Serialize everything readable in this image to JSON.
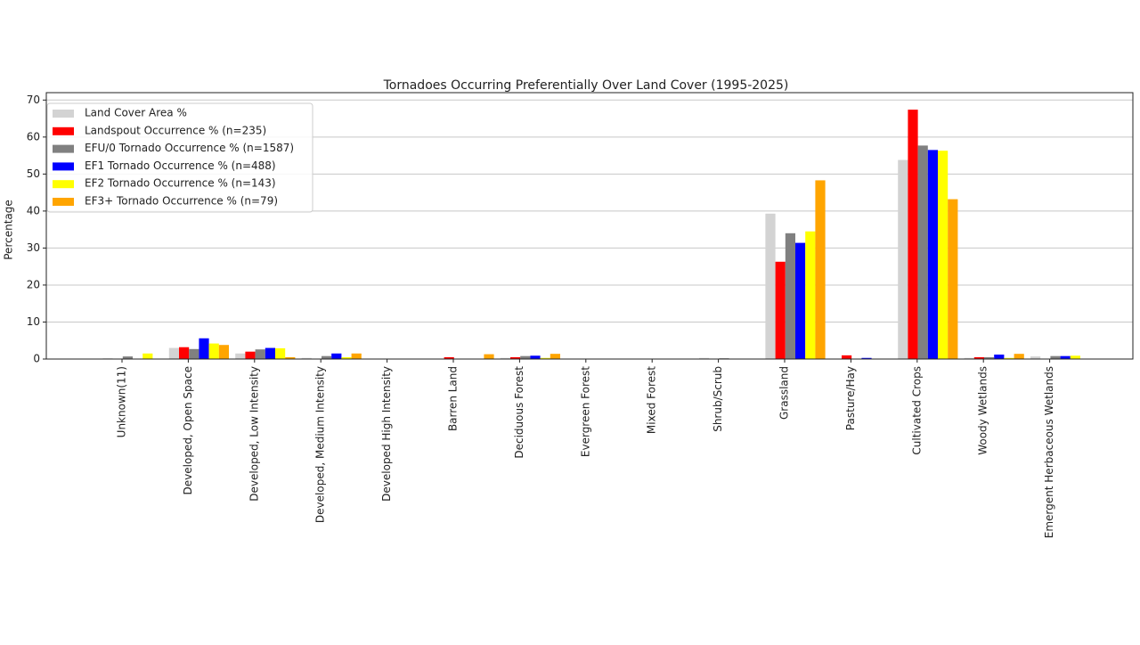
{
  "chart_data": {
    "type": "bar",
    "title": "Tornadoes Occurring Preferentially Over Land Cover (1995-2025)",
    "y_label": "Percentage",
    "categories": [
      "Unknown(11)",
      "Developed, Open Space",
      "Developed, Low Intensity",
      "Developed, Medium Intensity",
      "Developed High Intensity",
      "Barren Land",
      "Deciduous Forest",
      "Evergreen Forest",
      "Mixed Forest",
      "Shrub/Scrub",
      "Grassland",
      "Pasture/Hay",
      "Cultivated Crops",
      "Woody Wetlands",
      "Emergent Herbaceous Wetlands"
    ],
    "series": [
      {
        "name": "Land Cover Area %",
        "color": "#d3d3d3",
        "values": [
          0.2,
          3.0,
          1.5,
          0.3,
          0,
          0,
          0.3,
          0,
          0,
          0.3,
          39.3,
          0,
          53.8,
          0.3,
          0.7
        ]
      },
      {
        "name": "Landspout Occurrence % (n=235)",
        "color": "#ff0000",
        "values": [
          0,
          3.2,
          2.0,
          0,
          0,
          0.5,
          0.5,
          0,
          0,
          0,
          26.3,
          1.0,
          67.4,
          0.5,
          0
        ]
      },
      {
        "name": "EFU/0 Tornado Occurrence % (n=1587)",
        "color": "#808080",
        "values": [
          0.7,
          2.7,
          2.6,
          0.8,
          0,
          0,
          0.8,
          0,
          0,
          0.2,
          34.0,
          0,
          57.7,
          0.5,
          0.8
        ]
      },
      {
        "name": "EF1 Tornado Occurrence % (n=488)",
        "color": "#0000ff",
        "values": [
          0,
          5.6,
          3.0,
          1.5,
          0,
          0,
          0.9,
          0,
          0,
          0,
          31.4,
          0.3,
          56.5,
          1.2,
          0.8
        ]
      },
      {
        "name": "EF2 Tornado Occurrence % (n=143)",
        "color": "#ffff00",
        "values": [
          1.5,
          4.2,
          2.9,
          0.5,
          0,
          0,
          0.3,
          0,
          0,
          0,
          34.5,
          0,
          56.3,
          0.3,
          0.9
        ]
      },
      {
        "name": "EF3+ Tornado Occurrence % (n=79)",
        "color": "#ffa500",
        "values": [
          0,
          3.8,
          0.5,
          1.5,
          0,
          1.3,
          1.4,
          0,
          0,
          0,
          48.3,
          0,
          43.2,
          1.4,
          0
        ]
      }
    ],
    "ylim": [
      0,
      72
    ],
    "yticks": [
      0,
      10,
      20,
      30,
      40,
      50,
      60,
      70
    ],
    "grid": true,
    "legend": "upper-left"
  }
}
